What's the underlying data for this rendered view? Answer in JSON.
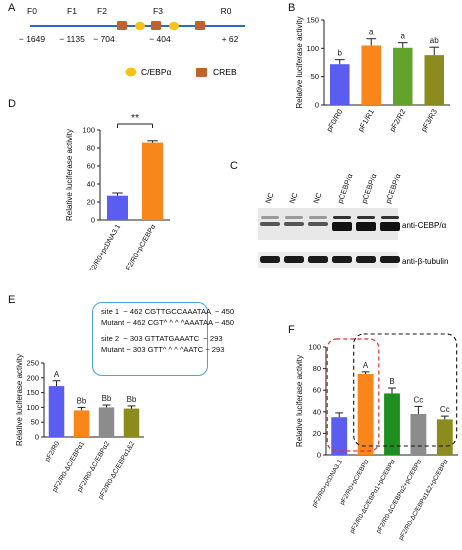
{
  "panels": {
    "A": "A",
    "B": "B",
    "C": "C",
    "D": "D",
    "E": "E",
    "F": "F"
  },
  "promoter": {
    "fragments": [
      "F0",
      "F1",
      "F2",
      "F3",
      "R0"
    ],
    "positions": [
      "− 1649",
      "− 1135",
      "− 704",
      "− 404",
      "+ 62"
    ],
    "legend": [
      {
        "label": "C/EBPα",
        "color": "#f6c21a"
      },
      {
        "label": "CREB",
        "color": "#c0622c"
      }
    ]
  },
  "chart_data": [
    {
      "panel": "B",
      "type": "bar",
      "ylabel": "Relative luciferase activity",
      "ylim": [
        0,
        150
      ],
      "yticks": [
        "0",
        "50",
        "100",
        "150"
      ],
      "categories": [
        "pF0/R0",
        "pF1/R1",
        "pF2/R2",
        "pF3/R3"
      ],
      "values": [
        72,
        105,
        101,
        88
      ],
      "errors": [
        8,
        12,
        9,
        14
      ],
      "letters": [
        "b",
        "a",
        "a",
        "ab"
      ],
      "colors": [
        "#5b5cf0",
        "#f9861a",
        "#62a32b",
        "#8c8c1e"
      ]
    },
    {
      "panel": "D",
      "type": "bar",
      "ylabel": "Relative luciferase activity",
      "ylim": [
        0,
        100
      ],
      "yticks": [
        "0",
        "20",
        "40",
        "60",
        "80",
        "100"
      ],
      "categories": [
        "pF2/R0+pcDNA3.1",
        "pF2/R0+pC/EBPα"
      ],
      "values": [
        27,
        86
      ],
      "errors": [
        3,
        2
      ],
      "significance": "**",
      "colors": [
        "#5b5cf0",
        "#f9861a"
      ]
    },
    {
      "panel": "E",
      "type": "bar",
      "ylabel": "Relative luciferase activity",
      "ylim": [
        0,
        250
      ],
      "yticks": [
        "0",
        "50",
        "100",
        "150",
        "200",
        "250"
      ],
      "categories": [
        "pF2/R0",
        "pF2/R0-ΔC/EBPα1",
        "pF2/R0-ΔC/EBPα2",
        "pF2/R0-ΔC/EBPα1&2"
      ],
      "values": [
        172,
        90,
        100,
        96
      ],
      "errors": [
        18,
        10,
        8,
        9
      ],
      "letters": [
        "A",
        "Bb",
        "Bb",
        "Bb"
      ],
      "colors": [
        "#5b5cf0",
        "#f9861a",
        "#8c8c8c",
        "#8c8c1e"
      ]
    },
    {
      "panel": "F",
      "type": "bar",
      "ylabel": "Relative luciferase activity",
      "ylim": [
        0,
        100
      ],
      "yticks": [
        "0",
        "20",
        "40",
        "60",
        "80",
        "100"
      ],
      "categories": [
        "pF2/R0+pcDNA3.1",
        "pF2/R0+pC/EBPα",
        "pF2/R0-ΔC/EBPα1+pC/EBPα",
        "pF2/R0-ΔC/EBPα2+pC/EBPα",
        "pF2/R0-ΔC/EBPα1&2+pC/EBPα"
      ],
      "values": [
        35,
        75,
        57,
        38,
        33
      ],
      "errors": [
        4,
        2,
        5,
        7,
        3
      ],
      "letters": [
        "",
        "A",
        "B",
        "Cc",
        "Cc"
      ],
      "colors": [
        "#5b5cf0",
        "#f9861a",
        "#1e8f1e",
        "#8c8c8c",
        "#8c8c1e"
      ]
    }
  ],
  "blot": {
    "lanes": [
      "NC",
      "NC",
      "NC",
      "pCEBP/α",
      "pCEBP/α",
      "pCEBP/α"
    ],
    "labels": [
      "anti-CEBP/α",
      "anti-β-tubulin"
    ]
  },
  "sites": {
    "site1_label": "site 1",
    "site1": "− 462 CGTTGCCAAATAA  − 450",
    "mutant1_label": "Mutant",
    "mutant1": "− 462 CGT^ ^ ^ ^AAATAA − 450",
    "site2_label": "site 2",
    "site2": "− 303 GTTATGAAATC  − 293",
    "mutant2_label": "Mutant",
    "mutant2": "− 303 GTT^ ^ ^ ^AATC − 293"
  }
}
